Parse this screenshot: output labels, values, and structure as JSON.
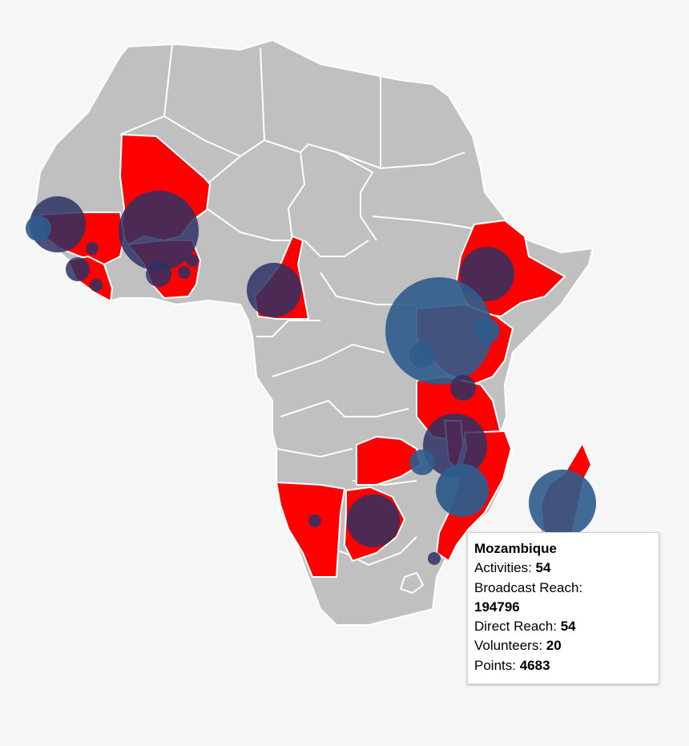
{
  "colors": {
    "background": "#f6f6f6",
    "land": "#c0c0c0",
    "active": "#ff0000",
    "border": "#ffffff",
    "bubble_dark": "#2e3163",
    "bubble_blue": "#2e5c8c",
    "highlight_stroke": "#1a8a1a"
  },
  "map": {
    "highlighted_country": "Mozambique",
    "active_countries": [
      "Senegal",
      "Guinea",
      "Sierra Leone",
      "Liberia",
      "Mali",
      "Burkina Faso",
      "Ghana",
      "Togo",
      "Nigeria",
      "Cameroon",
      "Ethiopia",
      "Uganda",
      "Kenya",
      "Tanzania",
      "Malawi",
      "Zambia",
      "Mozambique",
      "Namibia",
      "Botswana",
      "Madagascar"
    ]
  },
  "tooltip": {
    "country": "Mozambique",
    "activities_label": "Activities:",
    "activities": "54",
    "broadcast_label": "Broadcast Reach:",
    "broadcast": "194796",
    "direct_label": "Direct Reach:",
    "direct": "54",
    "volunteers_label": "Volunteers:",
    "volunteers": "20",
    "points_label": "Points:",
    "points": "4683"
  }
}
